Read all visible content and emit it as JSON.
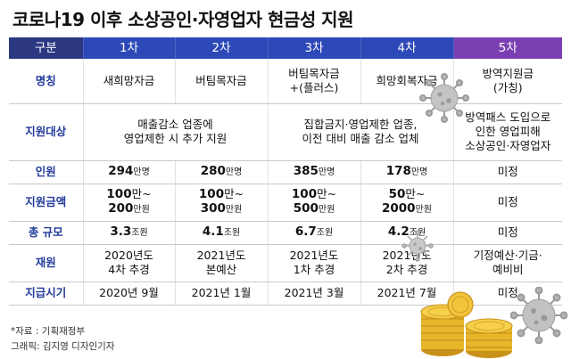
{
  "title": "코로나19 이후 소상공인·자영업자 현금성 지원",
  "header": {
    "label": "구분",
    "c1": "1차",
    "c2": "2차",
    "c3": "3차",
    "c4": "4차",
    "c5": "5차"
  },
  "rows": {
    "name": {
      "label": "명칭",
      "c1": "새희망자금",
      "c2": "버팀목자금",
      "c3_l1": "버팀목자금",
      "c3_l2": "+(플러스)",
      "c4": "희망회복자금",
      "c5_l1": "방역지원금",
      "c5_l2": "(가칭)"
    },
    "target": {
      "label": "지원대상",
      "c12_l1": "매출감소 업종에",
      "c12_l2": "영업제한 시 추가 지원",
      "c34_l1": "집합금지·영업제한 업종,",
      "c34_l2": "이전 대비 매출 감소 업체",
      "c5_l1": "방역패스 도입으로",
      "c5_l2": "인한 영업피해",
      "c5_l3": "소상공인·자영업자"
    },
    "people": {
      "label": "인원",
      "c1_num": "294",
      "c2_num": "280",
      "c3_num": "385",
      "c4_num": "178",
      "unit": "만명",
      "c5": "미정"
    },
    "amount": {
      "label": "지원금액",
      "c1_l1_num": "100",
      "c1_l1_unit": "만~",
      "c1_l2_num": "200",
      "c1_l2_unit": "만원",
      "c2_l1_num": "100",
      "c2_l1_unit": "만~",
      "c2_l2_num": "300",
      "c2_l2_unit": "만원",
      "c3_l1_num": "100",
      "c3_l1_unit": "만~",
      "c3_l2_num": "500",
      "c3_l2_unit": "만원",
      "c4_l1_num": "50",
      "c4_l1_unit": "만~",
      "c4_l2_num": "2000",
      "c4_l2_unit": "만원",
      "c5": "미정"
    },
    "scale": {
      "label": "총 규모",
      "c1_num": "3.3",
      "c2_num": "4.1",
      "c3_num": "6.7",
      "c4_num": "4.2",
      "unit": "조원",
      "c5": "미정"
    },
    "source": {
      "label": "재원",
      "c1_l1": "2020년도",
      "c1_l2": "4차 추경",
      "c2_l1": "2021년도",
      "c2_l2": "본예산",
      "c3_l1": "2021년도",
      "c3_l2": "1차 추경",
      "c4_l1": "2021년도",
      "c4_l2": "2차 추경",
      "c5_l1": "기정예산·기금·",
      "c5_l2": "예비비"
    },
    "timing": {
      "label": "지급시기",
      "c1": "2020년 9월",
      "c2": "2021년 1월",
      "c3": "2021년 3월",
      "c4": "2021년 7월",
      "c5": "미정"
    }
  },
  "footer": {
    "source": "*자료 : 기획재정부",
    "credit": "그래픽: 김지영 디자인기자"
  },
  "colors": {
    "header_label_bg": "#2c3782",
    "header_bg": "#2d49b8",
    "header_5th_bg": "#7b3fb1",
    "row_label_text": "#223a9a",
    "coin": "#e8b62a"
  }
}
